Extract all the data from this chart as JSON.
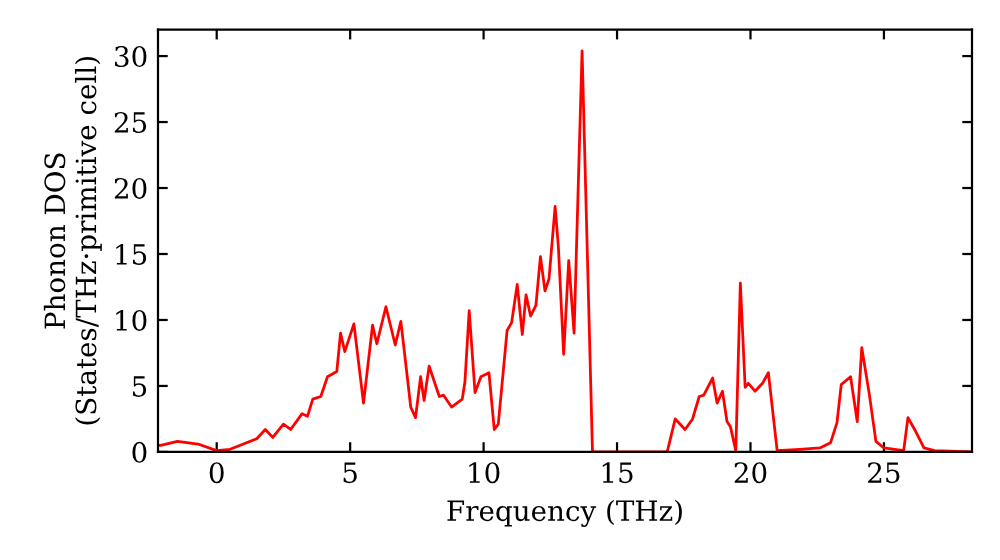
{
  "chart_data": {
    "type": "line",
    "xlabel": "Frequency (THz)",
    "ylabel": "Phonon DOS\n(States/THz·primitive cell)",
    "series": [
      {
        "color": "#ff0000",
        "x": [
          -2.2,
          -2.1,
          -1.47,
          -0.7,
          0,
          0.5,
          1.0,
          1.5,
          1.82,
          2.1,
          2.5,
          2.77,
          3.2,
          3.4,
          3.6,
          3.9,
          4.15,
          4.5,
          4.64,
          4.8,
          5.14,
          5.5,
          5.84,
          6.0,
          6.34,
          6.69,
          6.9,
          7.27,
          7.45,
          7.64,
          7.77,
          7.96,
          8.34,
          8.5,
          8.8,
          9.2,
          9.3,
          9.46,
          9.68,
          9.9,
          10.2,
          10.4,
          10.55,
          10.88,
          11.05,
          11.26,
          11.45,
          11.59,
          11.76,
          11.96,
          12.13,
          12.3,
          12.45,
          12.68,
          12.8,
          13.0,
          13.19,
          13.39,
          13.69,
          14.08,
          16.88,
          17.18,
          17.55,
          17.83,
          18.08,
          18.25,
          18.58,
          18.75,
          18.95,
          19.12,
          19.25,
          19.45,
          19.62,
          19.8,
          19.92,
          20.17,
          20.45,
          20.67,
          21.0,
          21.85,
          22.6,
          23.0,
          23.24,
          23.4,
          23.75,
          24.0,
          24.17,
          24.45,
          24.7,
          25.0,
          25.74,
          25.9,
          26.15,
          26.5,
          26.9,
          28.3
        ],
        "values": [
          0.5,
          0.5,
          0.8,
          0.6,
          0.1,
          0.2,
          0.6,
          1.0,
          1.7,
          1.1,
          2.1,
          1.7,
          2.9,
          2.7,
          4.0,
          4.2,
          5.7,
          6.1,
          9.0,
          7.6,
          9.7,
          3.7,
          9.6,
          8.2,
          11.0,
          8.1,
          9.9,
          3.4,
          2.6,
          5.7,
          3.9,
          6.5,
          4.2,
          4.3,
          3.4,
          4.0,
          5.3,
          10.7,
          4.5,
          5.7,
          6.0,
          1.7,
          2.1,
          9.2,
          9.8,
          12.7,
          8.9,
          11.9,
          10.3,
          11.1,
          14.8,
          12.2,
          13.1,
          18.6,
          15.6,
          7.4,
          14.5,
          9.0,
          30.4,
          0,
          0,
          2.5,
          1.7,
          2.5,
          4.2,
          4.3,
          5.6,
          3.7,
          4.6,
          2.3,
          1.9,
          0.1,
          12.8,
          4.9,
          5.2,
          4.6,
          5.2,
          6.0,
          0.1,
          0.2,
          0.3,
          0.7,
          2.2,
          5.1,
          5.7,
          2.3,
          7.9,
          4.4,
          0.8,
          0.3,
          0.1,
          2.6,
          1.7,
          0.3,
          0.1,
          0
        ]
      }
    ],
    "xlim": [
      -2.2,
      28.3
    ],
    "ylim": [
      0,
      32
    ],
    "xticks": [
      0,
      5,
      10,
      15,
      20,
      25
    ],
    "yticks": [
      0,
      5,
      10,
      15,
      20,
      25,
      30
    ],
    "grid": false,
    "legend": false,
    "marker": "none",
    "line_style": "solid"
  }
}
